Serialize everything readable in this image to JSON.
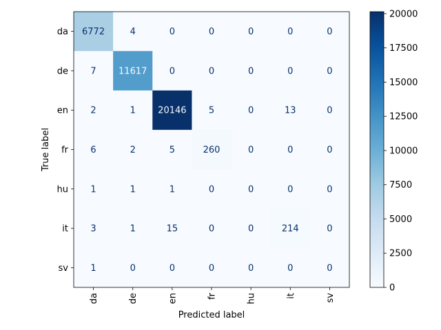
{
  "chart_data": {
    "type": "heatmap",
    "title": "",
    "xlabel": "Predicted label",
    "ylabel": "True label",
    "x_categories": [
      "da",
      "de",
      "en",
      "fr",
      "hu",
      "it",
      "sv"
    ],
    "y_categories": [
      "da",
      "de",
      "en",
      "fr",
      "hu",
      "it",
      "sv"
    ],
    "values": [
      [
        6772,
        4,
        0,
        0,
        0,
        0,
        0
      ],
      [
        7,
        11617,
        0,
        0,
        0,
        0,
        0
      ],
      [
        2,
        1,
        20146,
        5,
        0,
        13,
        0
      ],
      [
        6,
        2,
        5,
        260,
        0,
        0,
        0
      ],
      [
        1,
        1,
        1,
        0,
        0,
        0,
        0
      ],
      [
        3,
        1,
        15,
        0,
        0,
        214,
        0
      ],
      [
        1,
        0,
        0,
        0,
        0,
        0,
        0
      ]
    ],
    "colormap": "Blues",
    "colorbar": {
      "min": 0,
      "max": 20146,
      "ticks": [
        0,
        2500,
        5000,
        7500,
        10000,
        12500,
        15000,
        17500,
        20000
      ]
    },
    "grid": false,
    "legend": "colorbar-right"
  }
}
